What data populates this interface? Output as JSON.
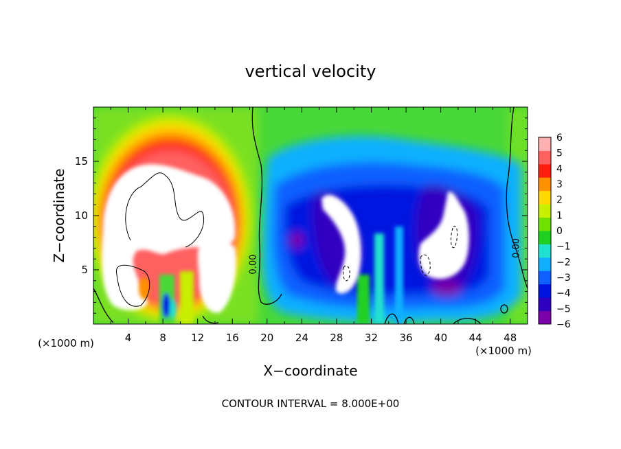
{
  "chart_data": {
    "type": "heatmap",
    "title": "vertical velocity",
    "xlabel": "X−coordinate",
    "ylabel": "Z−coordinate",
    "x_unit_left": "(×1000 m)",
    "x_unit_right": "(×1000 m)",
    "footer": "CONTOUR INTERVAL = 8.000E+00",
    "xlim": [
      0,
      50
    ],
    "ylim": [
      0,
      20
    ],
    "x_ticks": [
      4,
      8,
      12,
      16,
      20,
      24,
      28,
      32,
      36,
      40,
      44,
      48
    ],
    "x_tick_labels": [
      "4",
      "8",
      "12",
      "16",
      "20",
      "24",
      "28",
      "32",
      "36",
      "40",
      "44",
      "48"
    ],
    "y_ticks": [
      5,
      10,
      15
    ],
    "y_tick_labels": [
      "5",
      "10",
      "15"
    ],
    "colorbar": {
      "min": -6,
      "max": 6,
      "tick_values": [
        6,
        5,
        4,
        3,
        2,
        1,
        0,
        -1,
        -2,
        -3,
        -4,
        -5,
        -6
      ],
      "tick_labels": [
        "6",
        "5",
        "4",
        "3",
        "2",
        "1",
        "0",
        "−1",
        "−2",
        "−3",
        "−4",
        "−5",
        "−6"
      ],
      "colors": [
        "#7a00a8",
        "#3000c0",
        "#0014e0",
        "#1060ff",
        "#10b0ff",
        "#20e0d0",
        "#20d020",
        "#70e000",
        "#c8ee00",
        "#ffd800",
        "#ff9000",
        "#ff2010",
        "#ff6060",
        "#ffb0b0"
      ]
    },
    "contour_labels": [
      {
        "text": "0.00",
        "x": 18.7,
        "z": 5.5
      },
      {
        "text": "0.00",
        "x": 49.0,
        "z": 7.0
      }
    ],
    "features": [
      {
        "name": "left updraft core",
        "sign": "positive",
        "x_range": [
          1,
          16
        ],
        "z_range": [
          1,
          15
        ]
      },
      {
        "name": "central downdraft band",
        "sign": "negative",
        "x_range": [
          27,
          30.5
        ],
        "z_range": [
          3,
          12
        ]
      },
      {
        "name": "right downdraft band",
        "sign": "negative",
        "x_range": [
          37,
          43
        ],
        "z_range": [
          3,
          13
        ]
      }
    ]
  }
}
